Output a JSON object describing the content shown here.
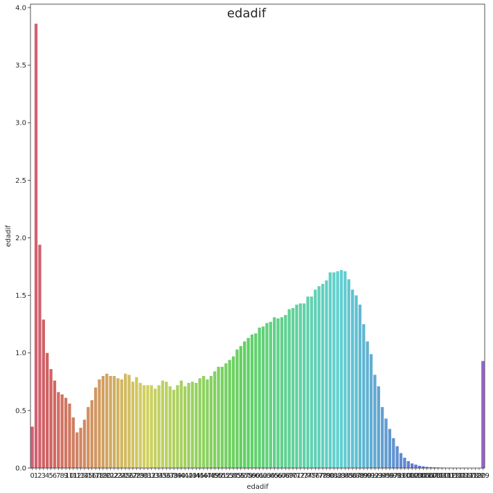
{
  "chart_data": {
    "type": "bar",
    "title": "edadif",
    "xlabel": "edadif",
    "ylabel": "edadif",
    "ylim": [
      0,
      4.0
    ],
    "yticks": [
      "0.0",
      "0.5",
      "1.0",
      "1.5",
      "2.0",
      "2.5",
      "3.0",
      "3.5",
      "4.0"
    ],
    "grid": false,
    "categories": [
      "0",
      "1",
      "2",
      "3",
      "4",
      "5",
      "6",
      "7",
      "8",
      "9",
      "10",
      "11",
      "12",
      "13",
      "14",
      "15",
      "16",
      "17",
      "18",
      "19",
      "20",
      "21",
      "22",
      "23",
      "24",
      "25",
      "26",
      "27",
      "28",
      "29",
      "30",
      "31",
      "32",
      "33",
      "34",
      "35",
      "36",
      "37",
      "38",
      "39",
      "40",
      "41",
      "42",
      "43",
      "44",
      "45",
      "46",
      "47",
      "48",
      "49",
      "50",
      "51",
      "52",
      "53",
      "54",
      "55",
      "56",
      "57",
      "58",
      "59",
      "60",
      "61",
      "62",
      "63",
      "64",
      "65",
      "66",
      "67",
      "68",
      "69",
      "70",
      "71",
      "72",
      "73",
      "74",
      "75",
      "76",
      "77",
      "78",
      "79",
      "80",
      "81",
      "82",
      "83",
      "84",
      "85",
      "86",
      "87",
      "88",
      "89",
      "90",
      "91",
      "92",
      "93",
      "94",
      "95",
      "96",
      "97",
      "98",
      "99",
      "100",
      "101",
      "102",
      "103",
      "104",
      "105",
      "106",
      "107",
      "108",
      "109",
      "110",
      "111",
      "112",
      "113",
      "114",
      "115",
      "116",
      "117",
      "118",
      "119",
      "120",
      "129"
    ],
    "values": [
      0.36,
      3.86,
      1.94,
      1.29,
      1.0,
      0.86,
      0.76,
      0.66,
      0.64,
      0.61,
      0.56,
      0.44,
      0.31,
      0.35,
      0.42,
      0.53,
      0.59,
      0.7,
      0.77,
      0.8,
      0.82,
      0.8,
      0.8,
      0.78,
      0.77,
      0.82,
      0.81,
      0.75,
      0.79,
      0.74,
      0.72,
      0.72,
      0.72,
      0.69,
      0.72,
      0.76,
      0.75,
      0.71,
      0.68,
      0.72,
      0.76,
      0.71,
      0.74,
      0.75,
      0.74,
      0.78,
      0.8,
      0.77,
      0.8,
      0.84,
      0.88,
      0.88,
      0.91,
      0.94,
      0.97,
      1.03,
      1.06,
      1.1,
      1.13,
      1.16,
      1.17,
      1.22,
      1.23,
      1.26,
      1.27,
      1.31,
      1.3,
      1.31,
      1.33,
      1.38,
      1.39,
      1.42,
      1.43,
      1.43,
      1.49,
      1.49,
      1.55,
      1.58,
      1.6,
      1.63,
      1.7,
      1.7,
      1.71,
      1.72,
      1.71,
      1.64,
      1.55,
      1.5,
      1.42,
      1.25,
      1.1,
      0.99,
      0.81,
      0.71,
      0.53,
      0.43,
      0.34,
      0.26,
      0.19,
      0.13,
      0.09,
      0.06,
      0.04,
      0.03,
      0.02,
      0.015,
      0.01,
      0.008,
      0.006,
      0.005,
      0.004,
      0.003,
      0.002,
      0.002,
      0.001,
      0.001,
      0.001,
      0.001,
      0.001,
      0.001,
      0.001,
      0.93
    ]
  }
}
